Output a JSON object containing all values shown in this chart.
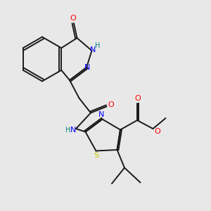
{
  "background_color": "#e8e8e8",
  "bond_color": "#1a1a1a",
  "figsize": [
    3.0,
    3.0
  ],
  "dpi": 100,
  "colors": {
    "O": "#ff0000",
    "N": "#0000ff",
    "NH": "#008080",
    "S": "#c8c800",
    "C": "#1a1a1a"
  }
}
